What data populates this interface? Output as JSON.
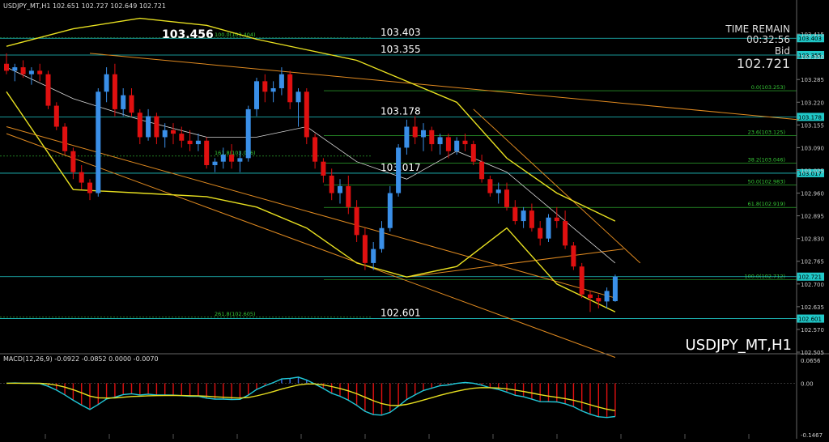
{
  "window": {
    "header": "USDJPY_MT,H1  102.651 102.727 102.649 102.721",
    "watermark": "USDJPY_MT,H1",
    "big_high_label": "103.456"
  },
  "time_remain": {
    "title": "TIME REMAIN",
    "value": "00:32:56",
    "bid_label": "Bid",
    "bid_value": "102.721"
  },
  "colors": {
    "background": "#000000",
    "bull": "#3a8fe8",
    "bear": "#e01010",
    "bollinger": "#e8e020",
    "trendline": "#e08a20",
    "cyan_line": "#20c8c8",
    "fib": "#36c836",
    "macd_signal": "#e8e020",
    "macd_line": "#20c8d8",
    "macd_hist_pos": "#3a6fe8",
    "macd_hist_neg": "#e01010",
    "axis_text": "#cccccc"
  },
  "chart_data": [
    {
      "type": "candlestick",
      "title": "USDJPY_MT,H1",
      "ylim": [
        102.505,
        103.48
      ],
      "y_ticks": [
        "103.415",
        "103.350",
        "103.285",
        "103.220",
        "103.155",
        "103.090",
        "103.025",
        "102.960",
        "102.895",
        "102.830",
        "102.765",
        "102.700",
        "102.635",
        "102.570",
        "102.505"
      ],
      "price_tags": [
        {
          "label": "103.403",
          "value": 103.403
        },
        {
          "label": "103.355",
          "value": 103.355
        },
        {
          "label": "103.178",
          "value": 103.178
        },
        {
          "label": "103.017",
          "value": 103.017
        },
        {
          "label": "102.721",
          "value": 102.721
        },
        {
          "label": "102.601",
          "value": 102.601
        }
      ],
      "level_labels": [
        {
          "text": "103.403",
          "value": 103.403
        },
        {
          "text": "103.355",
          "value": 103.355
        },
        {
          "text": "103.178",
          "value": 103.178
        },
        {
          "text": "103.017",
          "value": 103.017
        },
        {
          "text": "102.601",
          "value": 102.601
        }
      ],
      "fibonacci_right": [
        {
          "label": "0.0(103.253)",
          "value": 103.253
        },
        {
          "label": "23.6(103.125)",
          "value": 103.125
        },
        {
          "label": "38.2(103.046)",
          "value": 103.046
        },
        {
          "label": "50.0(102.983)",
          "value": 102.983
        },
        {
          "label": "61.8(102.919)",
          "value": 102.919
        },
        {
          "label": "100.0(102.712)",
          "value": 102.712
        }
      ],
      "fibonacci_left": [
        {
          "label": "100.0(103.404)",
          "value": 103.404
        },
        {
          "label": "161.8(103.066)",
          "value": 103.066
        },
        {
          "label": "261.8(102.605)",
          "value": 102.605
        }
      ],
      "candles": [
        [
          103.33,
          103.36,
          103.3,
          103.31
        ],
        [
          103.31,
          103.33,
          103.28,
          103.32
        ],
        [
          103.32,
          103.34,
          103.29,
          103.3
        ],
        [
          103.3,
          103.32,
          103.27,
          103.31
        ],
        [
          103.31,
          103.33,
          103.28,
          103.3
        ],
        [
          103.3,
          103.31,
          103.2,
          103.21
        ],
        [
          103.21,
          103.22,
          103.14,
          103.15
        ],
        [
          103.15,
          103.16,
          103.07,
          103.08
        ],
        [
          103.08,
          103.09,
          103.0,
          103.02
        ],
        [
          103.02,
          103.04,
          102.97,
          102.99
        ],
        [
          102.99,
          103.0,
          102.94,
          102.96
        ],
        [
          102.96,
          103.26,
          102.95,
          103.25
        ],
        [
          103.25,
          103.32,
          103.22,
          103.3
        ],
        [
          103.3,
          103.33,
          103.18,
          103.2
        ],
        [
          103.2,
          103.26,
          103.18,
          103.24
        ],
        [
          103.24,
          103.26,
          103.18,
          103.19
        ],
        [
          103.19,
          103.2,
          103.1,
          103.12
        ],
        [
          103.12,
          103.2,
          103.11,
          103.18
        ],
        [
          103.18,
          103.19,
          103.1,
          103.12
        ],
        [
          103.12,
          103.16,
          103.09,
          103.14
        ],
        [
          103.14,
          103.16,
          103.1,
          103.13
        ],
        [
          103.13,
          103.15,
          103.09,
          103.11
        ],
        [
          103.11,
          103.14,
          103.08,
          103.1
        ],
        [
          103.1,
          103.13,
          103.08,
          103.11
        ],
        [
          103.11,
          103.12,
          103.03,
          103.04
        ],
        [
          103.04,
          103.06,
          103.02,
          103.05
        ],
        [
          103.05,
          103.09,
          103.03,
          103.07
        ],
        [
          103.07,
          103.1,
          103.03,
          103.05
        ],
        [
          103.05,
          103.08,
          103.02,
          103.06
        ],
        [
          103.06,
          103.21,
          103.05,
          103.2
        ],
        [
          103.2,
          103.29,
          103.18,
          103.28
        ],
        [
          103.28,
          103.3,
          103.22,
          103.25
        ],
        [
          103.25,
          103.28,
          103.22,
          103.26
        ],
        [
          103.26,
          103.32,
          103.24,
          103.3
        ],
        [
          103.3,
          103.31,
          103.2,
          103.22
        ],
        [
          103.22,
          103.26,
          103.15,
          103.25
        ],
        [
          103.25,
          103.26,
          103.1,
          103.12
        ],
        [
          103.12,
          103.13,
          103.03,
          103.05
        ],
        [
          103.05,
          103.06,
          102.99,
          103.01
        ],
        [
          103.01,
          103.03,
          102.94,
          102.96
        ],
        [
          102.96,
          103.0,
          102.93,
          102.98
        ],
        [
          102.98,
          103.01,
          102.9,
          102.92
        ],
        [
          102.92,
          102.94,
          102.82,
          102.84
        ],
        [
          102.84,
          102.86,
          102.74,
          102.76
        ],
        [
          102.76,
          102.82,
          102.74,
          102.8
        ],
        [
          102.8,
          102.88,
          102.79,
          102.86
        ],
        [
          102.86,
          102.98,
          102.85,
          102.96
        ],
        [
          102.96,
          103.1,
          102.95,
          103.09
        ],
        [
          103.09,
          103.17,
          103.07,
          103.15
        ],
        [
          103.15,
          103.18,
          103.1,
          103.12
        ],
        [
          103.12,
          103.16,
          103.08,
          103.14
        ],
        [
          103.14,
          103.15,
          103.08,
          103.1
        ],
        [
          103.1,
          103.13,
          103.07,
          103.12
        ],
        [
          103.12,
          103.13,
          103.06,
          103.08
        ],
        [
          103.08,
          103.12,
          103.07,
          103.11
        ],
        [
          103.11,
          103.13,
          103.08,
          103.1
        ],
        [
          103.1,
          103.11,
          103.04,
          103.05
        ],
        [
          103.05,
          103.07,
          102.99,
          103.0
        ],
        [
          103.0,
          103.01,
          102.95,
          102.96
        ],
        [
          102.96,
          102.99,
          102.93,
          102.97
        ],
        [
          102.97,
          102.99,
          102.91,
          102.92
        ],
        [
          102.92,
          102.94,
          102.87,
          102.88
        ],
        [
          102.88,
          102.92,
          102.86,
          102.91
        ],
        [
          102.91,
          102.93,
          102.85,
          102.86
        ],
        [
          102.86,
          102.88,
          102.81,
          102.83
        ],
        [
          102.83,
          102.9,
          102.82,
          102.89
        ],
        [
          102.89,
          102.92,
          102.86,
          102.88
        ],
        [
          102.88,
          102.91,
          102.8,
          102.81
        ],
        [
          102.81,
          102.82,
          102.74,
          102.75
        ],
        [
          102.75,
          102.76,
          102.66,
          102.67
        ],
        [
          102.67,
          102.68,
          102.62,
          102.66
        ],
        [
          102.66,
          102.67,
          102.63,
          102.65
        ],
        [
          102.65,
          102.69,
          102.63,
          102.68
        ],
        [
          102.651,
          102.727,
          102.649,
          102.721
        ]
      ],
      "bollinger": [
        {
          "name": "upper",
          "values": [
            [
              0,
              103.38
            ],
            [
              8,
              103.43
            ],
            [
              16,
              103.46
            ],
            [
              24,
              103.44
            ],
            [
              30,
              103.4
            ],
            [
              36,
              103.37
            ],
            [
              42,
              103.34
            ],
            [
              48,
              103.28
            ],
            [
              54,
              103.22
            ],
            [
              60,
              103.06
            ],
            [
              66,
              102.96
            ],
            [
              73,
              102.88
            ]
          ]
        },
        {
          "name": "middle",
          "values": [
            [
              0,
              103.32
            ],
            [
              8,
              103.23
            ],
            [
              16,
              103.17
            ],
            [
              24,
              103.12
            ],
            [
              30,
              103.12
            ],
            [
              36,
              103.15
            ],
            [
              42,
              103.05
            ],
            [
              48,
              103.0
            ],
            [
              54,
              103.08
            ],
            [
              60,
              103.02
            ],
            [
              66,
              102.9
            ],
            [
              73,
              102.76
            ]
          ]
        },
        {
          "name": "lower",
          "values": [
            [
              0,
              103.25
            ],
            [
              8,
              102.97
            ],
            [
              16,
              102.96
            ],
            [
              24,
              102.95
            ],
            [
              30,
              102.92
            ],
            [
              36,
              102.86
            ],
            [
              42,
              102.76
            ],
            [
              48,
              102.72
            ],
            [
              54,
              102.75
            ],
            [
              60,
              102.86
            ],
            [
              66,
              102.7
            ],
            [
              73,
              102.62
            ]
          ]
        }
      ],
      "macd": {
        "label": "MACD(12,26,9) -0.0922 -0.0852 0.0000 -0.0070",
        "y_ticks": [
          "0.0656",
          "0.00",
          "-0.1467"
        ],
        "ylim": [
          -0.1467,
          0.0656
        ]
      }
    }
  ]
}
